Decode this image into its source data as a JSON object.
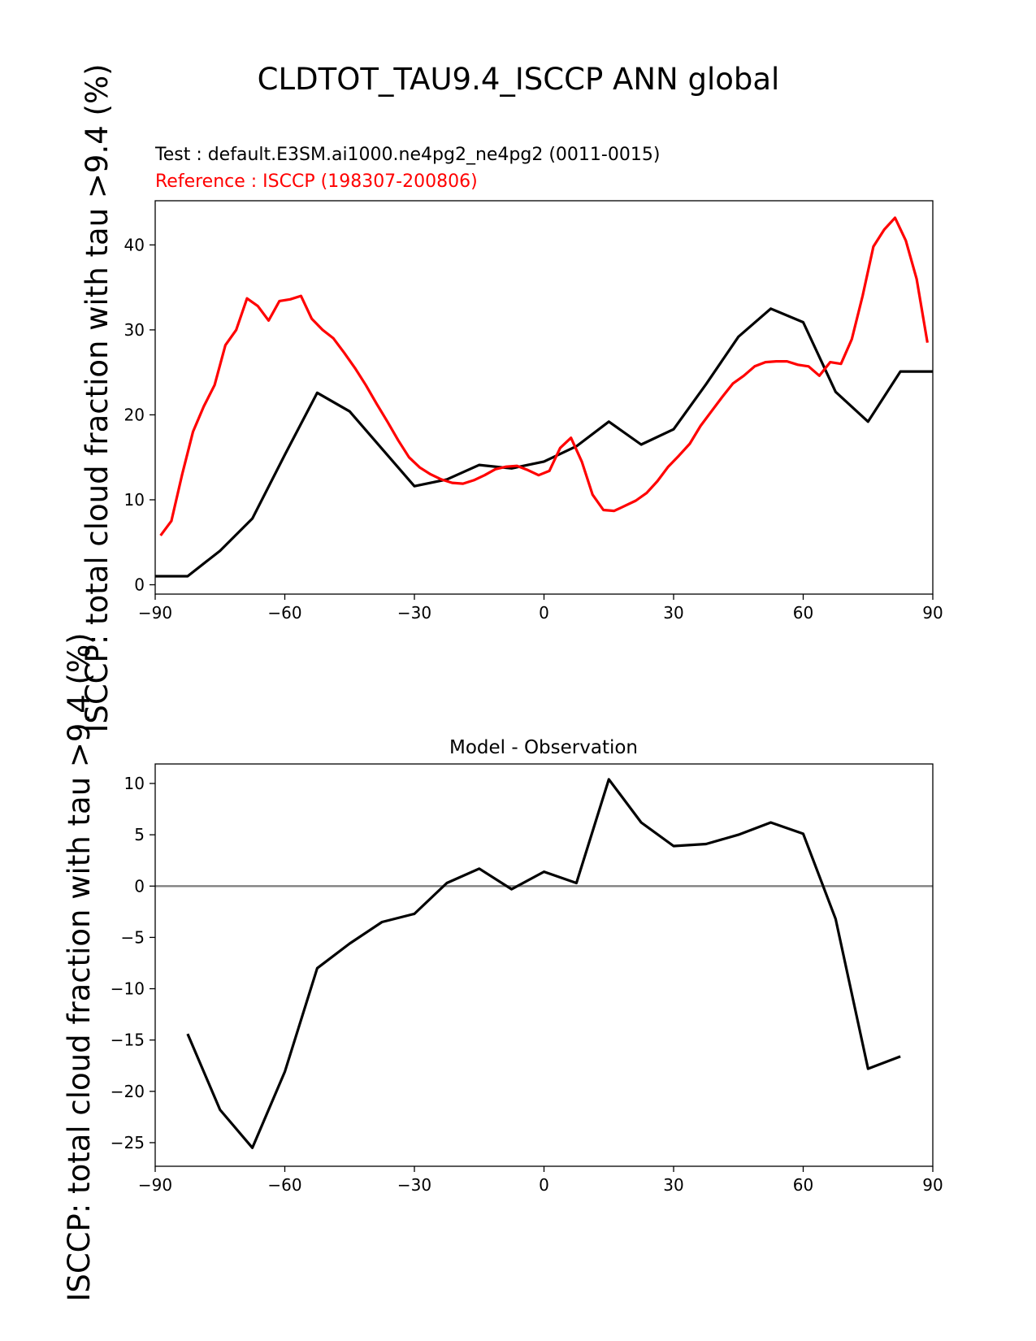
{
  "page_title": "CLDTOT_TAU9.4_ISCCP ANN global",
  "test_label": "Test : default.E3SM.ai1000.ne4pg2_ne4pg2 (0011-0015)",
  "reference_label": "Reference : ISCCP (198307-200806)",
  "colors": {
    "test": "#000000",
    "reference": "#ff0000",
    "zero_line": "#808080"
  },
  "chart_data": [
    {
      "type": "line",
      "title": "",
      "xlabel": "",
      "ylabel": "ISCCP: total cloud fraction with tau >9.4 (%)",
      "xlim": [
        -90,
        90
      ],
      "ylim": [
        -1.1,
        45.2
      ],
      "xticks": [
        -90,
        -60,
        -30,
        0,
        30,
        60,
        90
      ],
      "xtick_labels": [
        "−90",
        "−60",
        "−30",
        "0",
        "30",
        "60",
        "90"
      ],
      "yticks": [
        0,
        10,
        20,
        30,
        40
      ],
      "ytick_labels": [
        "0",
        "10",
        "20",
        "30",
        "40"
      ],
      "series": [
        {
          "name": "Test",
          "color": "#000000",
          "x": [
            -90,
            -82.5,
            -75,
            -67.5,
            -60,
            -52.5,
            -45,
            -37.5,
            -30,
            -22.5,
            -15,
            -7.5,
            0,
            7.5,
            15,
            22.5,
            30,
            37.5,
            45,
            52.5,
            60,
            67.5,
            75,
            82.5,
            90
          ],
          "y": [
            1.0,
            1.0,
            4.0,
            7.8,
            15.3,
            22.6,
            20.4,
            16.0,
            11.6,
            12.4,
            14.1,
            13.7,
            14.5,
            16.3,
            19.2,
            16.5,
            18.3,
            23.6,
            29.2,
            32.5,
            30.9,
            22.7,
            19.2,
            25.1,
            25.1
          ]
        },
        {
          "name": "Reference",
          "color": "#ff0000",
          "x": [
            -88.75,
            -86.25,
            -83.75,
            -81.25,
            -78.75,
            -76.25,
            -73.75,
            -71.25,
            -68.75,
            -66.25,
            -63.75,
            -61.25,
            -58.75,
            -56.25,
            -53.75,
            -51.25,
            -48.75,
            -46.25,
            -43.75,
            -41.25,
            -38.75,
            -36.25,
            -33.75,
            -31.25,
            -28.75,
            -26.25,
            -23.75,
            -21.25,
            -18.75,
            -16.25,
            -13.75,
            -11.25,
            -8.75,
            -6.25,
            -3.75,
            -1.25,
            1.25,
            3.75,
            6.25,
            8.75,
            11.25,
            13.75,
            16.25,
            18.75,
            21.25,
            23.75,
            26.25,
            28.75,
            31.25,
            33.75,
            36.25,
            38.75,
            41.25,
            43.75,
            46.25,
            48.75,
            51.25,
            53.75,
            56.25,
            58.75,
            61.25,
            63.75,
            66.25,
            68.75,
            71.25,
            73.75,
            76.25,
            78.75,
            81.25,
            83.75,
            86.25,
            88.75
          ],
          "y": [
            5.8,
            7.5,
            13.0,
            18.0,
            21.0,
            23.5,
            28.2,
            30.0,
            33.7,
            32.8,
            31.1,
            33.4,
            33.6,
            34.0,
            31.3,
            30.0,
            29.0,
            27.3,
            25.5,
            23.5,
            21.3,
            19.2,
            17.0,
            15.0,
            13.8,
            13.0,
            12.4,
            12.0,
            11.9,
            12.3,
            12.9,
            13.6,
            13.9,
            14.0,
            13.5,
            12.9,
            13.4,
            16.1,
            17.3,
            14.5,
            10.6,
            8.8,
            8.7,
            9.3,
            9.9,
            10.8,
            12.2,
            13.9,
            15.2,
            16.6,
            18.7,
            20.4,
            22.1,
            23.7,
            24.6,
            25.7,
            26.2,
            26.3,
            26.3,
            25.9,
            25.7,
            24.6,
            26.2,
            26.0,
            28.9,
            34.0,
            39.8,
            41.8,
            43.2,
            40.5,
            36.0,
            28.5
          ]
        }
      ]
    },
    {
      "type": "line",
      "title": "Model - Observation",
      "xlabel": "",
      "ylabel": "ISCCP: total cloud fraction with tau >9.4 (%)",
      "xlim": [
        -90,
        90
      ],
      "ylim": [
        -27.3,
        11.9
      ],
      "xticks": [
        -90,
        -60,
        -30,
        0,
        30,
        60,
        90
      ],
      "xtick_labels": [
        "−90",
        "−60",
        "−30",
        "0",
        "30",
        "60",
        "90"
      ],
      "yticks": [
        10,
        5,
        0,
        -5,
        -10,
        -15,
        -20,
        -25
      ],
      "ytick_labels": [
        "10",
        "5",
        "0",
        "−5",
        "−10",
        "−15",
        "−20",
        "−25"
      ],
      "zero_line": 0,
      "series": [
        {
          "name": "Model - Observation",
          "color": "#000000",
          "x": [
            -82.5,
            -75,
            -67.5,
            -60,
            -52.5,
            -45,
            -37.5,
            -30,
            -22.5,
            -15,
            -7.5,
            0,
            7.5,
            15,
            22.5,
            30,
            37.5,
            45,
            52.5,
            60,
            67.5,
            75,
            82.5
          ],
          "y": [
            -14.4,
            -21.8,
            -25.5,
            -18.1,
            -8.0,
            -5.6,
            -3.5,
            -2.7,
            0.3,
            1.7,
            -0.3,
            1.4,
            0.3,
            10.4,
            6.2,
            3.9,
            4.1,
            5.0,
            6.2,
            5.1,
            -3.2,
            -17.8,
            -16.6
          ]
        }
      ]
    }
  ]
}
